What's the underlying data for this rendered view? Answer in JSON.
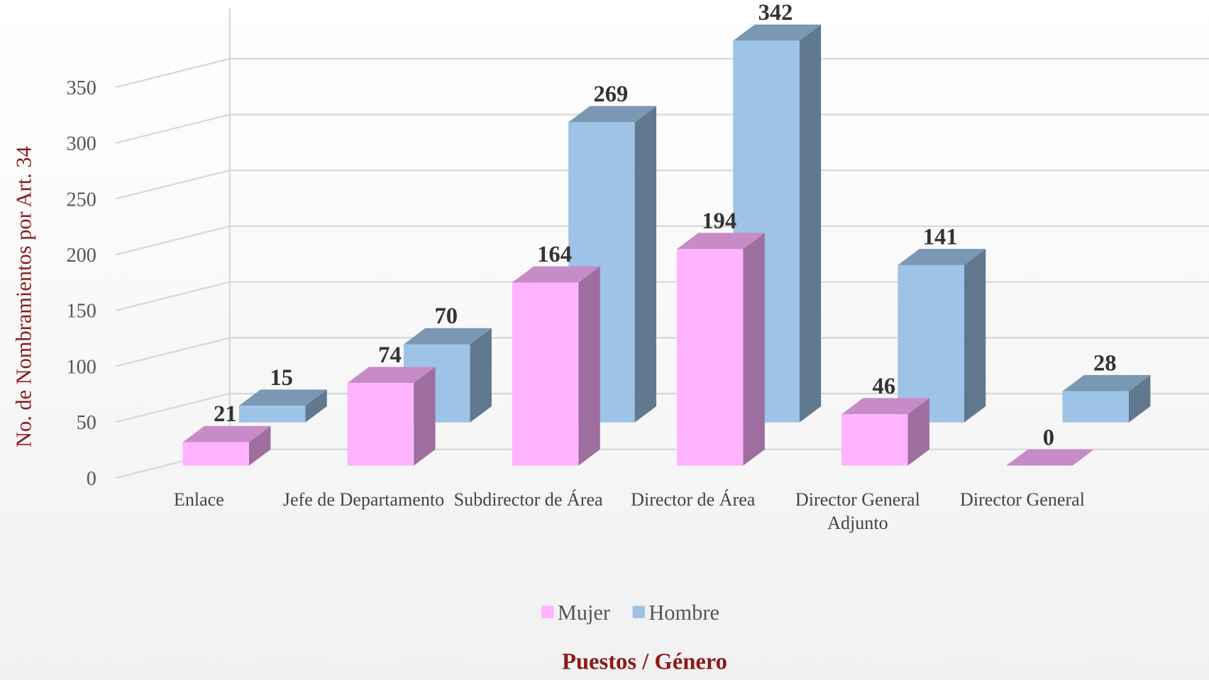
{
  "chart_data": {
    "type": "bar3d",
    "y_axis_label": "No. de Nombramientos por Art. 34",
    "x_axis_label": "Puestos / Género",
    "categories": [
      "Enlace",
      "Jefe de Departamento",
      "Subdirector de Área",
      "Director de Área",
      "Director General Adjunto",
      "Director General"
    ],
    "series": [
      {
        "name": "Mujer",
        "color": "#ffb3ff",
        "values": [
          21,
          74,
          164,
          194,
          46,
          0
        ]
      },
      {
        "name": "Hombre",
        "color": "#9dc3e6",
        "values": [
          15,
          70,
          269,
          342,
          141,
          28
        ]
      }
    ],
    "ylim": [
      0,
      350
    ],
    "yticks": [
      0,
      50,
      100,
      150,
      200,
      250,
      300,
      350
    ],
    "grid": true,
    "legend": "bottom"
  }
}
